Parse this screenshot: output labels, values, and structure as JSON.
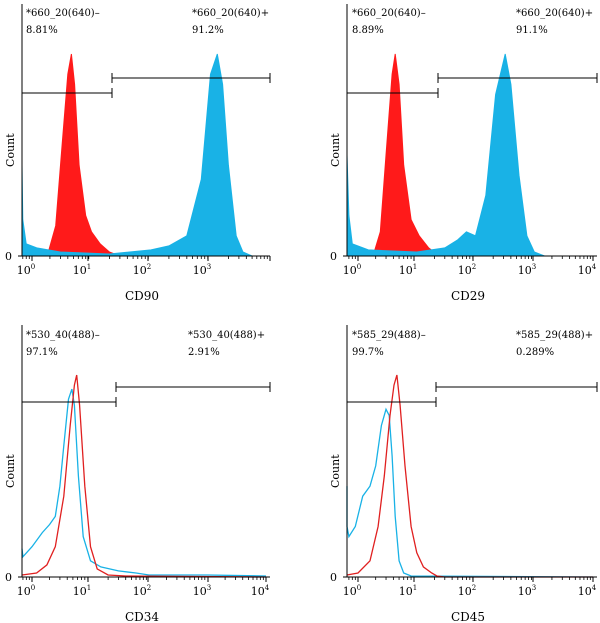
{
  "chart_data": [
    {
      "type": "area",
      "panel": "top-left",
      "xlabel": "CD90",
      "ylabel": "Count",
      "x_scale": "log",
      "xlim": [
        0.6,
        10000
      ],
      "x_ticks": [
        "10^0",
        "10^1",
        "10^2",
        "10^3"
      ],
      "y_ticks": [
        "0"
      ],
      "style": "filled",
      "gates": [
        {
          "name": "*660_20(640)–",
          "percent": "8.81%",
          "range": [
            0.6,
            28
          ]
        },
        {
          "name": "*660_20(640)+",
          "percent": "91.2%",
          "range": [
            28,
            10000
          ]
        }
      ],
      "series": [
        {
          "color": "#ff1a1a",
          "peak_x": 4.5,
          "values": [
            [
              1.8,
              0
            ],
            [
              2.5,
              0.15
            ],
            [
              3.2,
              0.55
            ],
            [
              4.0,
              0.9
            ],
            [
              4.6,
              1.0
            ],
            [
              5.2,
              0.85
            ],
            [
              6.2,
              0.45
            ],
            [
              8.0,
              0.2
            ],
            [
              10,
              0.12
            ],
            [
              14,
              0.06
            ],
            [
              20,
              0.02
            ],
            [
              30,
              0
            ]
          ]
        },
        {
          "color": "#19b2e6",
          "peak_x": 1300,
          "values": [
            [
              0.6,
              0.45
            ],
            [
              0.7,
              0.18
            ],
            [
              0.8,
              0.06
            ],
            [
              1.2,
              0.04
            ],
            [
              3,
              0.02
            ],
            [
              20,
              0.01
            ],
            [
              100,
              0.03
            ],
            [
              200,
              0.05
            ],
            [
              400,
              0.1
            ],
            [
              700,
              0.38
            ],
            [
              1000,
              0.9
            ],
            [
              1300,
              1.0
            ],
            [
              1600,
              0.85
            ],
            [
              2000,
              0.45
            ],
            [
              2700,
              0.1
            ],
            [
              3500,
              0.02
            ],
            [
              5000,
              0
            ]
          ]
        }
      ]
    },
    {
      "type": "area",
      "panel": "top-right",
      "xlabel": "CD29",
      "ylabel": "Count",
      "x_scale": "log",
      "xlim": [
        0.6,
        10000
      ],
      "x_ticks": [
        "10^0",
        "10^1",
        "10^2",
        "10^3",
        "10^4"
      ],
      "y_ticks": [
        "0"
      ],
      "style": "filled",
      "gates": [
        {
          "name": "*660_20(640)–",
          "percent": "8.89%",
          "range": [
            0.6,
            24
          ]
        },
        {
          "name": "*660_20(640)+",
          "percent": "91.1%",
          "range": [
            24,
            10000
          ]
        }
      ],
      "series": [
        {
          "color": "#ff1a1a",
          "peak_x": 4.3,
          "values": [
            [
              1.8,
              0
            ],
            [
              2.4,
              0.12
            ],
            [
              3.0,
              0.5
            ],
            [
              3.8,
              0.9
            ],
            [
              4.3,
              1.0
            ],
            [
              5.0,
              0.85
            ],
            [
              6.0,
              0.45
            ],
            [
              8.0,
              0.18
            ],
            [
              11,
              0.1
            ],
            [
              16,
              0.04
            ],
            [
              24,
              0
            ]
          ]
        },
        {
          "color": "#19b2e6",
          "peak_x": 320,
          "values": [
            [
              0.6,
              0.5
            ],
            [
              0.7,
              0.2
            ],
            [
              0.8,
              0.06
            ],
            [
              1.5,
              0.03
            ],
            [
              10,
              0.02
            ],
            [
              30,
              0.04
            ],
            [
              50,
              0.08
            ],
            [
              70,
              0.12
            ],
            [
              100,
              0.1
            ],
            [
              150,
              0.3
            ],
            [
              220,
              0.8
            ],
            [
              320,
              1.0
            ],
            [
              400,
              0.85
            ],
            [
              550,
              0.4
            ],
            [
              750,
              0.1
            ],
            [
              1000,
              0.02
            ],
            [
              1500,
              0
            ]
          ]
        }
      ]
    },
    {
      "type": "line",
      "panel": "bottom-left",
      "xlabel": "CD34",
      "ylabel": "Count",
      "x_scale": "log",
      "xlim": [
        0.6,
        10000
      ],
      "x_ticks": [
        "10^0",
        "10^1",
        "10^2",
        "10^3",
        "10^4"
      ],
      "y_ticks": [
        "0"
      ],
      "style": "outline",
      "gates": [
        {
          "name": "*530_40(488)–",
          "percent": "97.1%",
          "range": [
            0.6,
            30
          ]
        },
        {
          "name": "*530_40(488)+",
          "percent": "2.91%",
          "range": [
            30,
            10000
          ]
        }
      ],
      "series": [
        {
          "color": "#19b2e6",
          "peak_x": 4.8,
          "values": [
            [
              0.6,
              0.14
            ],
            [
              0.7,
              0.1
            ],
            [
              1.0,
              0.15
            ],
            [
              1.5,
              0.22
            ],
            [
              2.0,
              0.26
            ],
            [
              2.5,
              0.3
            ],
            [
              3.0,
              0.45
            ],
            [
              3.5,
              0.65
            ],
            [
              4.2,
              0.88
            ],
            [
              4.8,
              0.93
            ],
            [
              5.3,
              0.85
            ],
            [
              6.2,
              0.5
            ],
            [
              7.5,
              0.2
            ],
            [
              10,
              0.08
            ],
            [
              15,
              0.05
            ],
            [
              30,
              0.03
            ],
            [
              60,
              0.02
            ],
            [
              100,
              0.01
            ],
            [
              1000,
              0.01
            ],
            [
              10000,
              0.005
            ]
          ]
        },
        {
          "color": "#e02020",
          "peak_x": 5.8,
          "values": [
            [
              0.6,
              0.01
            ],
            [
              1.2,
              0.02
            ],
            [
              1.8,
              0.06
            ],
            [
              2.5,
              0.15
            ],
            [
              3.5,
              0.4
            ],
            [
              4.5,
              0.75
            ],
            [
              5.3,
              0.95
            ],
            [
              5.8,
              1.0
            ],
            [
              6.5,
              0.85
            ],
            [
              8,
              0.45
            ],
            [
              10,
              0.15
            ],
            [
              13,
              0.04
            ],
            [
              20,
              0.01
            ],
            [
              40,
              0.005
            ],
            [
              10000,
              0
            ]
          ]
        }
      ]
    },
    {
      "type": "line",
      "panel": "bottom-right",
      "xlabel": "CD45",
      "ylabel": "Count",
      "x_scale": "log",
      "xlim": [
        0.6,
        10000
      ],
      "x_ticks": [
        "10^0",
        "10^1",
        "10^2",
        "10^3",
        "10^4"
      ],
      "y_ticks": [
        "0"
      ],
      "style": "outline",
      "gates": [
        {
          "name": "*585_29(488)–",
          "percent": "99.7%",
          "range": [
            0.6,
            24
          ]
        },
        {
          "name": "*585_29(488)+",
          "percent": "0.289%",
          "range": [
            24,
            10000
          ]
        }
      ],
      "series": [
        {
          "color": "#19b2e6",
          "peak_x": 3.0,
          "values": [
            [
              0.6,
              0.45
            ],
            [
              0.65,
              0.25
            ],
            [
              0.7,
              0.2
            ],
            [
              0.9,
              0.25
            ],
            [
              1.2,
              0.4
            ],
            [
              1.6,
              0.45
            ],
            [
              2.0,
              0.55
            ],
            [
              2.5,
              0.75
            ],
            [
              3.0,
              0.83
            ],
            [
              3.4,
              0.8
            ],
            [
              3.8,
              0.6
            ],
            [
              4.3,
              0.3
            ],
            [
              5,
              0.08
            ],
            [
              6,
              0.02
            ],
            [
              8,
              0.005
            ],
            [
              10000,
              0
            ]
          ]
        },
        {
          "color": "#e02020",
          "peak_x": 4.6,
          "values": [
            [
              0.6,
              0.01
            ],
            [
              1.0,
              0.02
            ],
            [
              1.6,
              0.08
            ],
            [
              2.2,
              0.25
            ],
            [
              2.8,
              0.5
            ],
            [
              3.5,
              0.8
            ],
            [
              4.1,
              0.95
            ],
            [
              4.6,
              1.0
            ],
            [
              5.2,
              0.85
            ],
            [
              6.3,
              0.55
            ],
            [
              8,
              0.25
            ],
            [
              10,
              0.12
            ],
            [
              13,
              0.05
            ],
            [
              18,
              0.02
            ],
            [
              22,
              0.005
            ],
            [
              30,
              0
            ],
            [
              10000,
              0
            ]
          ]
        }
      ]
    }
  ],
  "labels": {
    "tick_base": "10",
    "x_exponents": [
      "0",
      "1",
      "2",
      "3",
      "4"
    ],
    "y_zero": "0"
  }
}
